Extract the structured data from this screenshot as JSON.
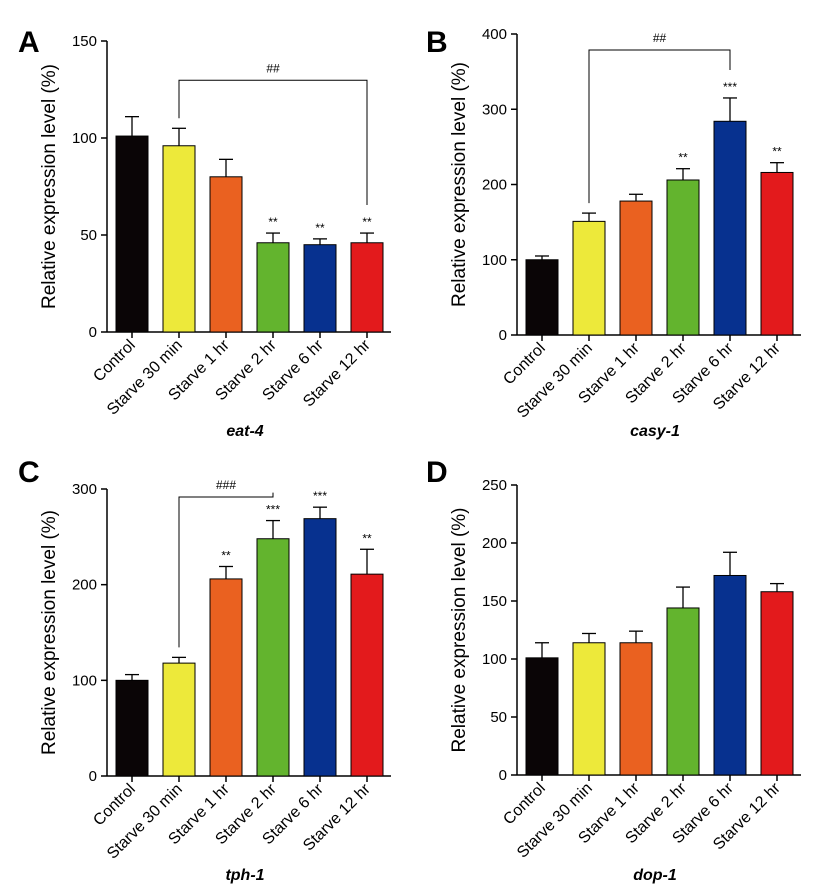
{
  "colors": [
    "#0a0506",
    "#ede93a",
    "#ea6120",
    "#63b42e",
    "#07318f",
    "#e31a1c"
  ],
  "chart_data": [
    {
      "type": "bar",
      "panel": "A",
      "gene": "eat-4",
      "ylabel": "Relative expression level (%)",
      "ylim": [
        0,
        150
      ],
      "yticks": [
        0,
        50,
        100,
        150
      ],
      "categories": [
        "Control",
        "Starve 30 min",
        "Starve 1 hr",
        "Starve 2 hr",
        "Starve 6 hr",
        "Starve 12 hr"
      ],
      "values": [
        101,
        96,
        80,
        46,
        45,
        46
      ],
      "errors": [
        10,
        9,
        9,
        5,
        3,
        5
      ],
      "significance": [
        "",
        "",
        "",
        "**",
        "**",
        "**"
      ],
      "bracket": {
        "from": 1,
        "to": 5,
        "label": "##"
      }
    },
    {
      "type": "bar",
      "panel": "B",
      "gene": "casy-1",
      "ylabel": "Relative expression level (%)",
      "ylim": [
        0,
        400
      ],
      "yticks": [
        0,
        100,
        200,
        300,
        400
      ],
      "categories": [
        "Control",
        "Starve 30 min",
        "Starve 1 hr",
        "Starve 2 hr",
        "Starve 6 hr",
        "Starve 12 hr"
      ],
      "values": [
        100,
        151,
        178,
        206,
        284,
        216
      ],
      "errors": [
        5,
        11,
        9,
        15,
        31,
        13
      ],
      "significance": [
        "",
        "",
        "",
        "**",
        "***",
        "**"
      ],
      "bracket": {
        "from": 1,
        "to": 4,
        "label": "##"
      }
    },
    {
      "type": "bar",
      "panel": "C",
      "gene": "tph-1",
      "ylabel": "Relative expression level (%)",
      "ylim": [
        0,
        300
      ],
      "yticks": [
        0,
        100,
        200,
        300
      ],
      "categories": [
        "Control",
        "Starve 30 min",
        "Starve 1 hr",
        "Starve 2 hr",
        "Starve 6 hr",
        "Starve 12 hr"
      ],
      "values": [
        100,
        118,
        206,
        248,
        269,
        211
      ],
      "errors": [
        6,
        6,
        13,
        19,
        12,
        26
      ],
      "significance": [
        "",
        "",
        "**",
        "***",
        "***",
        "**"
      ],
      "bracket": {
        "from": 1,
        "to": 3,
        "label": "###"
      }
    },
    {
      "type": "bar",
      "panel": "D",
      "gene": "dop-1",
      "ylabel": "Relative expression level (%)",
      "ylim": [
        0,
        250
      ],
      "yticks": [
        0,
        50,
        100,
        150,
        200,
        250
      ],
      "categories": [
        "Control",
        "Starve 30 min",
        "Starve 1 hr",
        "Starve 2 hr",
        "Starve 6 hr",
        "Starve 12 hr"
      ],
      "values": [
        101,
        114,
        114,
        144,
        172,
        158
      ],
      "errors": [
        13,
        8,
        10,
        18,
        20,
        7
      ],
      "significance": [
        "",
        "",
        "",
        "",
        "",
        ""
      ],
      "bracket": null
    }
  ]
}
